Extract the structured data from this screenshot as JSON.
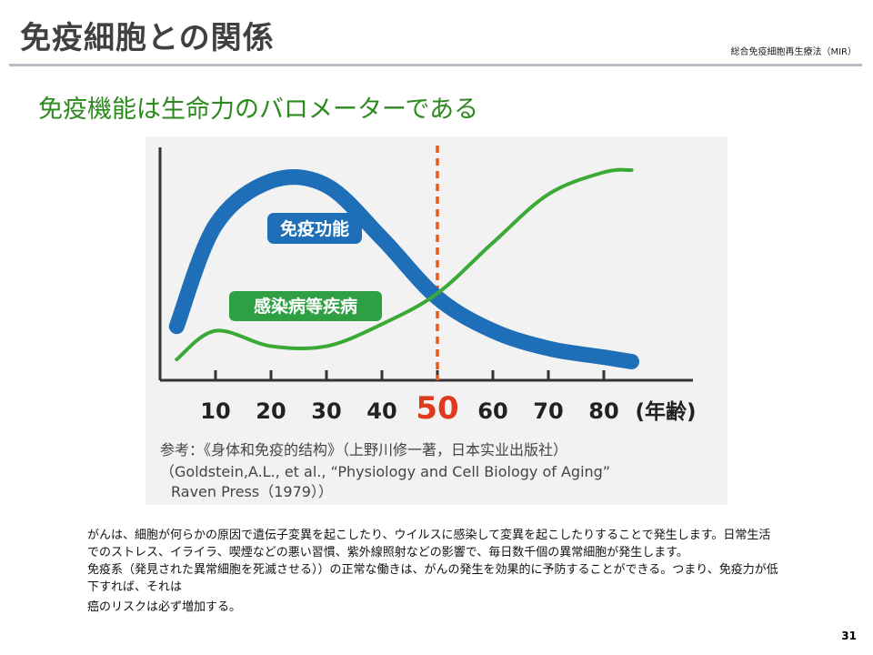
{
  "header": {
    "title": "免疫細胞との関係",
    "organization": "総合免疫細胞再生療法（MIR）"
  },
  "subtitle": "免疫機能は生命力のバロメーターである",
  "chart_data": {
    "type": "line",
    "x": [
      3,
      10,
      20,
      30,
      40,
      50,
      60,
      70,
      80,
      85
    ],
    "x_ticks": [
      10,
      20,
      30,
      40,
      50,
      60,
      70,
      80
    ],
    "x_unit": "(年齢)",
    "highlight_x": 50,
    "ylim": [
      0,
      100
    ],
    "series": [
      {
        "name": "免疫功能",
        "color": "#1f6fb8",
        "values": [
          22,
          68,
          88,
          86,
          62,
          35,
          20,
          12,
          8,
          6
        ]
      },
      {
        "name": "感染病等疾病",
        "color": "#3aa935",
        "values": [
          7,
          20,
          13,
          13,
          23,
          37,
          60,
          82,
          92,
          93
        ]
      }
    ],
    "reference": {
      "line1": "参考：《身体和免疫的结构》（上野川修一著，日本实业出版社）",
      "line2": "（Goldstein,A.L., et al., “Physiology and Cell Biology of Aging”",
      "line3": "Raven Press（1979））"
    }
  },
  "body": {
    "p1": "がんは、細胞が何らかの原因で遺伝子変異を起こしたり、ウイルスに感染して変異を起こしたりすることで発生します。日常生活でのストレス、イライラ、喫煙などの悪い習慣、紫外線照射などの影響で、毎日数千個の異常細胞が発生します。",
    "p2": "免疫系（発見された異常細胞を死滅させる））の正常な働きは、がんの発生を効果的に予防することができる。つまり、免疫力が低下すれば、それは",
    "p3": "癌のリスクは必ず増加する。"
  },
  "page_number": "31"
}
